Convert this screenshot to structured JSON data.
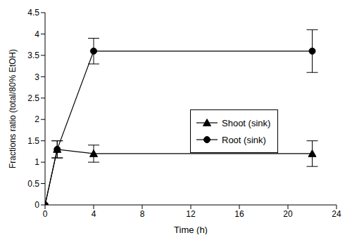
{
  "chart_data": {
    "type": "line",
    "x_label": "Time (h)",
    "y_label": "Fractions ratio (total/80% EtOH)",
    "x": [
      0,
      1,
      4,
      22
    ],
    "series": [
      {
        "name": "Shoot (sink)",
        "color": "#000000",
        "marker": "triangle",
        "values": [
          0,
          1.3,
          1.2,
          1.2
        ],
        "errors": [
          0,
          0.2,
          0.2,
          0.3
        ]
      },
      {
        "name": "Root (sink)",
        "color": "#000000",
        "marker": "circle",
        "values": [
          0,
          1.3,
          3.6,
          3.6
        ],
        "errors": [
          0,
          0.2,
          0.3,
          0.5
        ]
      }
    ],
    "xlim": [
      0,
      24
    ],
    "xticks": [
      0,
      4,
      8,
      12,
      16,
      20,
      24
    ],
    "ylim": [
      0,
      4.5
    ],
    "yticks": [
      0,
      0.5,
      1,
      1.5,
      2,
      2.5,
      3,
      3.5,
      4,
      4.5
    ],
    "grid": false,
    "legend": "center"
  }
}
